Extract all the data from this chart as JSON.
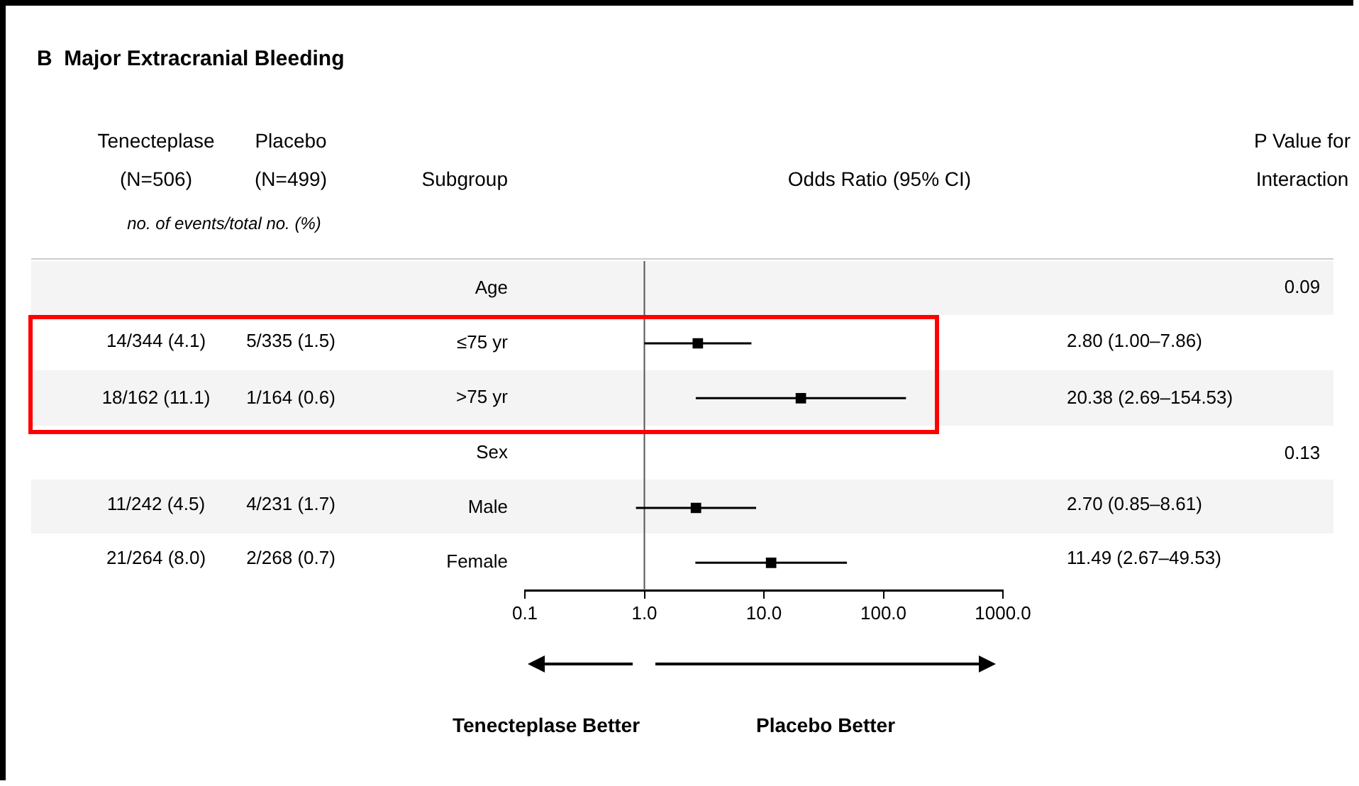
{
  "chart_data": {
    "type": "scatter",
    "orientation": "horizontal",
    "title": "B  Major Extracranial Bleeding",
    "xlabel": "Odds Ratio (95% CI)",
    "categories": [
      "Age",
      "≤75 yr",
      ">75 yr",
      "Sex",
      "Male",
      "Female"
    ],
    "values": [
      null,
      2.8,
      20.38,
      null,
      2.7,
      11.49
    ],
    "errors": [
      null,
      [
        1.0,
        7.86
      ],
      [
        2.69,
        154.53
      ],
      null,
      [
        0.85,
        8.61
      ],
      [
        2.67,
        49.53
      ]
    ],
    "color": "#000000",
    "marker": "square",
    "log": "x",
    "xlim": [
      0.1,
      1000
    ],
    "xticks": [
      0.1,
      {
        "value": 1,
        "label": "1.0"
      },
      {
        "value": 10,
        "label": "10.0"
      },
      {
        "value": 100,
        "label": "100.0"
      },
      {
        "value": 1000,
        "label": "1000.0"
      }
    ],
    "ref_lines": [
      {
        "axis": "x",
        "value": 1
      }
    ],
    "grid": false,
    "legend": false,
    "annotations": [
      "Tenecteplase",
      "(N=506)",
      "Placebo",
      "(N=499)",
      "no. of events/total no. (%)",
      "P Value for",
      "Interaction",
      "14/344 (4.1)",
      "5/335 (1.5)",
      "18/162 (11.1)",
      "1/164 (0.6)",
      "11/242 (4.5)",
      "4/231 (1.7)",
      "21/264 (8.0)",
      "2/268 (0.7)",
      "0.09",
      "0.13",
      "Tenecteplase Better",
      "Placebo Better",
      "Subgroup",
      "2.80 (1.00–7.86)",
      "20.38 (2.69–154.53)",
      "2.70 (0.85–8.61)",
      "11.49 (2.67–49.53)"
    ]
  }
}
